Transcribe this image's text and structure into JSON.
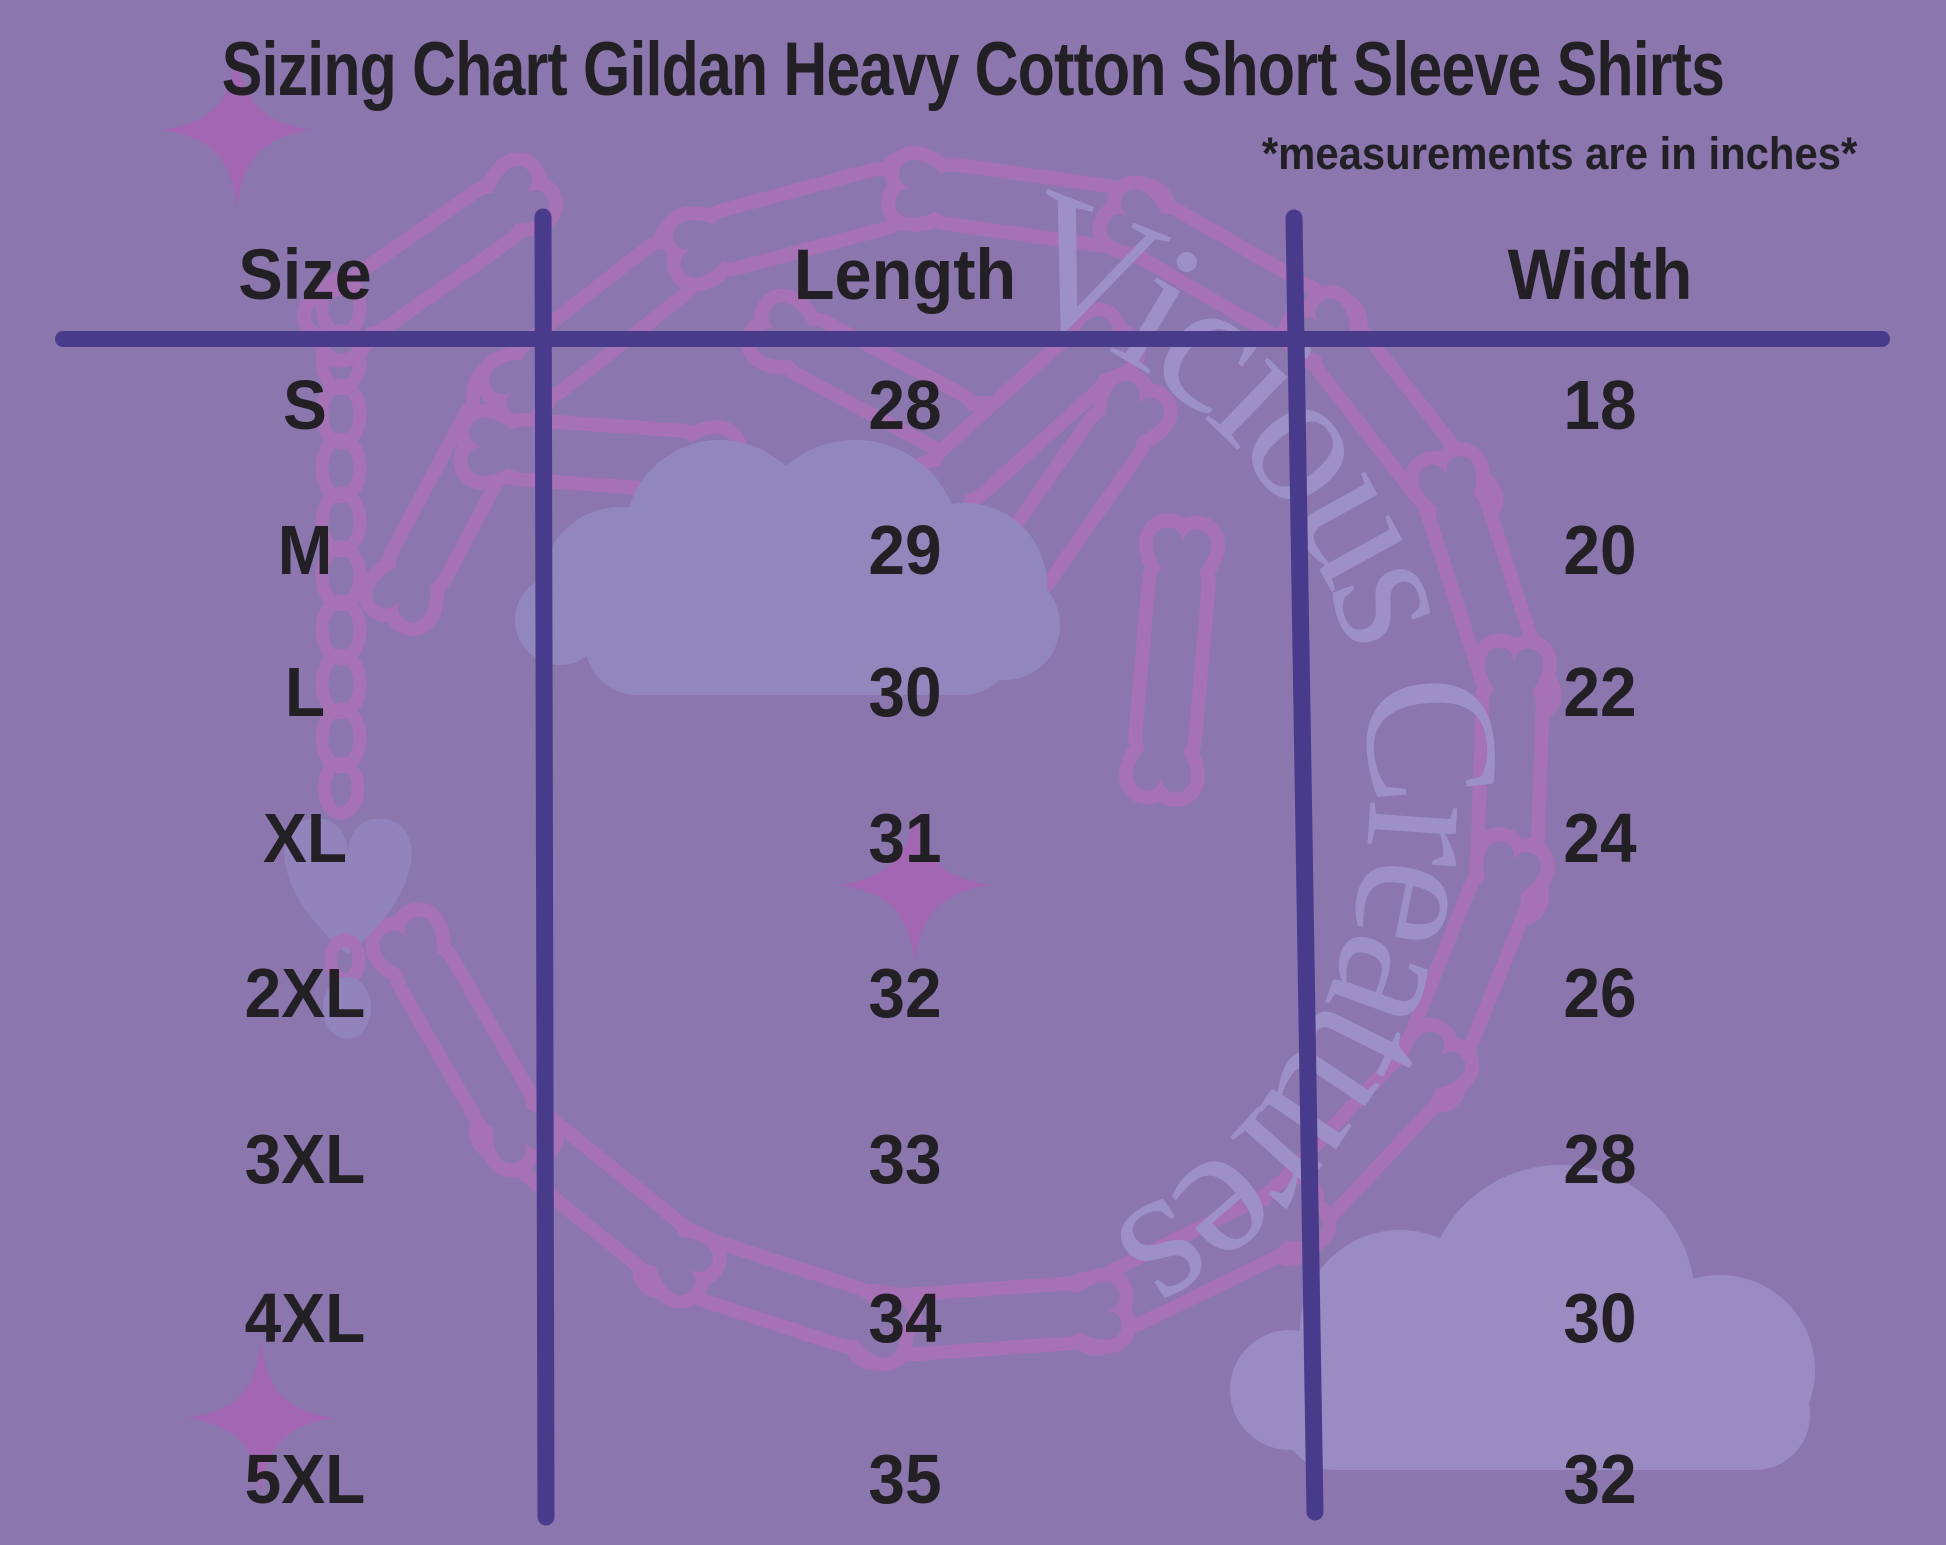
{
  "title": "Sizing Chart Gildan Heavy Cotton Short Sleeve Shirts",
  "subtitle": "*measurements are in inches*",
  "watermark_text": "Vicious Creatures",
  "table": {
    "columns": [
      "Size",
      "Length",
      "Width"
    ],
    "rows": [
      {
        "size": "S",
        "length": "28",
        "width": "18"
      },
      {
        "size": "M",
        "length": "29",
        "width": "20"
      },
      {
        "size": "L",
        "length": "30",
        "width": "22"
      },
      {
        "size": "XL",
        "length": "31",
        "width": "24"
      },
      {
        "size": "2XL",
        "length": "32",
        "width": "26"
      },
      {
        "size": "3XL",
        "length": "33",
        "width": "28"
      },
      {
        "size": "4XL",
        "length": "34",
        "width": "30"
      },
      {
        "size": "5XL",
        "length": "35",
        "width": "32"
      }
    ]
  },
  "colors": {
    "background": "#8b76ae",
    "text": "#232025",
    "table_lines": "#483b8b",
    "decoration_magenta": "#a671b5",
    "cloud_light_purple": "#9287bd",
    "watermark_text_color": "#9c90c6",
    "sparkle": "#a366b2"
  },
  "chart_data": {
    "type": "table",
    "title": "Sizing Chart Gildan Heavy Cotton Short Sleeve Shirts",
    "note": "*measurements are in inches*",
    "units": "inches",
    "columns": [
      "Size",
      "Length",
      "Width"
    ],
    "rows": [
      [
        "S",
        28,
        18
      ],
      [
        "M",
        29,
        20
      ],
      [
        "L",
        30,
        22
      ],
      [
        "XL",
        31,
        24
      ],
      [
        "2XL",
        32,
        26
      ],
      [
        "3XL",
        33,
        28
      ],
      [
        "4XL",
        34,
        30
      ],
      [
        "5XL",
        35,
        32
      ]
    ]
  }
}
